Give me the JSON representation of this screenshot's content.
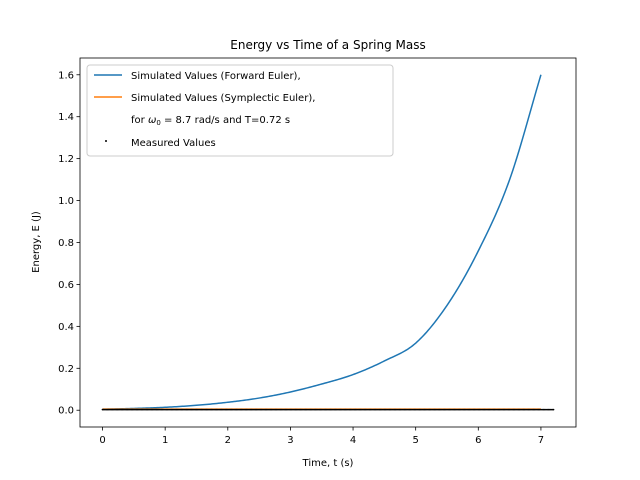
{
  "chart_data": {
    "type": "line",
    "title": "Energy vs Time of a Spring Mass",
    "xlabel": "Time, t (s)",
    "ylabel": "Energy, E (J)",
    "xlim": [
      -0.36,
      7.56
    ],
    "ylim": [
      -0.08,
      1.68
    ],
    "xticks": [
      0,
      1,
      2,
      3,
      4,
      5,
      6,
      7
    ],
    "yticks": [
      0.0,
      0.2,
      0.4,
      0.6,
      0.8,
      1.0,
      1.2,
      1.4,
      1.6
    ],
    "grid": false,
    "legend_position": "upper-left",
    "colors": {
      "forward_euler": "#1f77b4",
      "symplectic_euler": "#ff7f0e",
      "measured": "#000000"
    },
    "legend": {
      "forward_euler": "Simulated Values (Forward Euler),",
      "symplectic_euler": "Simulated Values (Symplectic Euler),",
      "params_prefix": "for ",
      "params_symbol": "ω",
      "params_subscript": "0",
      "params_suffix": " = 8.7 rad/s and T=0.72 s",
      "measured": "Measured Values"
    },
    "series": [
      {
        "name": "Simulated Values (Forward Euler)",
        "x": [
          0,
          0.5,
          1,
          1.5,
          2,
          2.5,
          3,
          3.5,
          4,
          4.5,
          5,
          5.5,
          6,
          6.5,
          7
        ],
        "y": [
          0.005,
          0.0085,
          0.014,
          0.0235,
          0.038,
          0.058,
          0.087,
          0.125,
          0.17,
          0.235,
          0.32,
          0.5,
          0.76,
          1.1,
          1.6
        ]
      },
      {
        "name": "Simulated Values (Symplectic Euler)",
        "x": [
          0,
          7
        ],
        "y": [
          0.005,
          0.005
        ]
      },
      {
        "name": "Measured Values",
        "x_range": [
          0,
          7.2
        ],
        "y": 0.003
      }
    ]
  }
}
